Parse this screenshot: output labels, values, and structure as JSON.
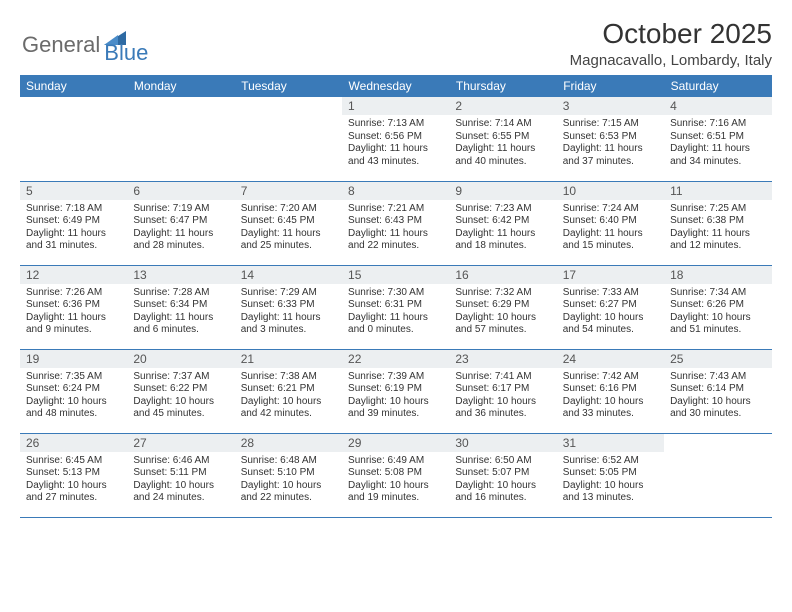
{
  "brand": {
    "word1": "General",
    "word2": "Blue"
  },
  "title": "October 2025",
  "location": "Magnacavallo, Lombardy, Italy",
  "colors": {
    "header_bg": "#3a7ab8",
    "header_text": "#ffffff",
    "daynum_bg": "#eceff1",
    "border": "#3a7ab8",
    "logo_gray": "#6b6b6b",
    "logo_blue": "#3a7ab8",
    "body_text": "#333333",
    "background": "#ffffff"
  },
  "typography": {
    "month_title_size": 28,
    "location_size": 15,
    "weekday_size": 12,
    "daynum_size": 12,
    "body_size": 10
  },
  "weekdays": [
    "Sunday",
    "Monday",
    "Tuesday",
    "Wednesday",
    "Thursday",
    "Friday",
    "Saturday"
  ],
  "weeks": [
    [
      null,
      null,
      null,
      {
        "n": "1",
        "sunrise": "7:13 AM",
        "sunset": "6:56 PM",
        "daylight": "11 hours and 43 minutes."
      },
      {
        "n": "2",
        "sunrise": "7:14 AM",
        "sunset": "6:55 PM",
        "daylight": "11 hours and 40 minutes."
      },
      {
        "n": "3",
        "sunrise": "7:15 AM",
        "sunset": "6:53 PM",
        "daylight": "11 hours and 37 minutes."
      },
      {
        "n": "4",
        "sunrise": "7:16 AM",
        "sunset": "6:51 PM",
        "daylight": "11 hours and 34 minutes."
      }
    ],
    [
      {
        "n": "5",
        "sunrise": "7:18 AM",
        "sunset": "6:49 PM",
        "daylight": "11 hours and 31 minutes."
      },
      {
        "n": "6",
        "sunrise": "7:19 AM",
        "sunset": "6:47 PM",
        "daylight": "11 hours and 28 minutes."
      },
      {
        "n": "7",
        "sunrise": "7:20 AM",
        "sunset": "6:45 PM",
        "daylight": "11 hours and 25 minutes."
      },
      {
        "n": "8",
        "sunrise": "7:21 AM",
        "sunset": "6:43 PM",
        "daylight": "11 hours and 22 minutes."
      },
      {
        "n": "9",
        "sunrise": "7:23 AM",
        "sunset": "6:42 PM",
        "daylight": "11 hours and 18 minutes."
      },
      {
        "n": "10",
        "sunrise": "7:24 AM",
        "sunset": "6:40 PM",
        "daylight": "11 hours and 15 minutes."
      },
      {
        "n": "11",
        "sunrise": "7:25 AM",
        "sunset": "6:38 PM",
        "daylight": "11 hours and 12 minutes."
      }
    ],
    [
      {
        "n": "12",
        "sunrise": "7:26 AM",
        "sunset": "6:36 PM",
        "daylight": "11 hours and 9 minutes."
      },
      {
        "n": "13",
        "sunrise": "7:28 AM",
        "sunset": "6:34 PM",
        "daylight": "11 hours and 6 minutes."
      },
      {
        "n": "14",
        "sunrise": "7:29 AM",
        "sunset": "6:33 PM",
        "daylight": "11 hours and 3 minutes."
      },
      {
        "n": "15",
        "sunrise": "7:30 AM",
        "sunset": "6:31 PM",
        "daylight": "11 hours and 0 minutes."
      },
      {
        "n": "16",
        "sunrise": "7:32 AM",
        "sunset": "6:29 PM",
        "daylight": "10 hours and 57 minutes."
      },
      {
        "n": "17",
        "sunrise": "7:33 AM",
        "sunset": "6:27 PM",
        "daylight": "10 hours and 54 minutes."
      },
      {
        "n": "18",
        "sunrise": "7:34 AM",
        "sunset": "6:26 PM",
        "daylight": "10 hours and 51 minutes."
      }
    ],
    [
      {
        "n": "19",
        "sunrise": "7:35 AM",
        "sunset": "6:24 PM",
        "daylight": "10 hours and 48 minutes."
      },
      {
        "n": "20",
        "sunrise": "7:37 AM",
        "sunset": "6:22 PM",
        "daylight": "10 hours and 45 minutes."
      },
      {
        "n": "21",
        "sunrise": "7:38 AM",
        "sunset": "6:21 PM",
        "daylight": "10 hours and 42 minutes."
      },
      {
        "n": "22",
        "sunrise": "7:39 AM",
        "sunset": "6:19 PM",
        "daylight": "10 hours and 39 minutes."
      },
      {
        "n": "23",
        "sunrise": "7:41 AM",
        "sunset": "6:17 PM",
        "daylight": "10 hours and 36 minutes."
      },
      {
        "n": "24",
        "sunrise": "7:42 AM",
        "sunset": "6:16 PM",
        "daylight": "10 hours and 33 minutes."
      },
      {
        "n": "25",
        "sunrise": "7:43 AM",
        "sunset": "6:14 PM",
        "daylight": "10 hours and 30 minutes."
      }
    ],
    [
      {
        "n": "26",
        "sunrise": "6:45 AM",
        "sunset": "5:13 PM",
        "daylight": "10 hours and 27 minutes."
      },
      {
        "n": "27",
        "sunrise": "6:46 AM",
        "sunset": "5:11 PM",
        "daylight": "10 hours and 24 minutes."
      },
      {
        "n": "28",
        "sunrise": "6:48 AM",
        "sunset": "5:10 PM",
        "daylight": "10 hours and 22 minutes."
      },
      {
        "n": "29",
        "sunrise": "6:49 AM",
        "sunset": "5:08 PM",
        "daylight": "10 hours and 19 minutes."
      },
      {
        "n": "30",
        "sunrise": "6:50 AM",
        "sunset": "5:07 PM",
        "daylight": "10 hours and 16 minutes."
      },
      {
        "n": "31",
        "sunrise": "6:52 AM",
        "sunset": "5:05 PM",
        "daylight": "10 hours and 13 minutes."
      },
      null
    ]
  ],
  "labels": {
    "sunrise": "Sunrise: ",
    "sunset": "Sunset: ",
    "daylight": "Daylight: "
  }
}
